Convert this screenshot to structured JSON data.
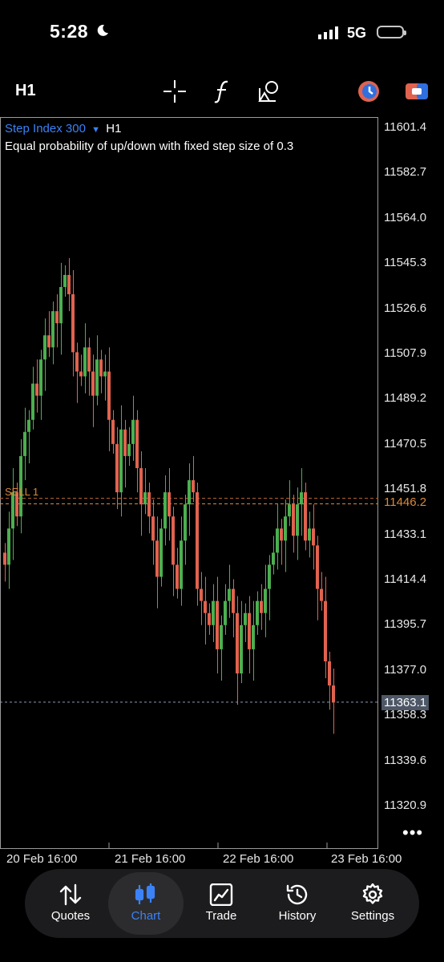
{
  "status_bar": {
    "time": "5:28",
    "network": "5G"
  },
  "toolbar": {
    "timeframe": "H1"
  },
  "chart": {
    "symbol": "Step Index 300",
    "timeframe": "H1",
    "description": "Equal probability of up/down with fixed step size of 0.3",
    "sell_label": "SELL 1",
    "sell_price": "11446.2",
    "current_price": "11363.1",
    "price_axis": [
      "11601.4",
      "11582.7",
      "11564.0",
      "11545.3",
      "11526.6",
      "11507.9",
      "11489.2",
      "11470.5",
      "11451.8",
      "11433.1",
      "11414.4",
      "11395.7",
      "11377.0",
      "11358.3",
      "11339.6",
      "11320.9"
    ],
    "date_axis": [
      "20 Feb 16:00",
      "21 Feb 16:00",
      "22 Feb 16:00",
      "23 Feb 16:00"
    ],
    "more_label": "•••"
  },
  "colors": {
    "up": "#4caf50",
    "down": "#e0634f",
    "accent": "#3b82f6",
    "sell": "#d98a3a",
    "grid": "#9a9a9a"
  },
  "tabs": [
    {
      "label": "Quotes",
      "icon": "arrows-up-down-icon"
    },
    {
      "label": "Chart",
      "icon": "candles-icon",
      "active": true
    },
    {
      "label": "Trade",
      "icon": "trade-chart-icon"
    },
    {
      "label": "History",
      "icon": "clock-history-icon"
    },
    {
      "label": "Settings",
      "icon": "gear-icon"
    }
  ],
  "chart_data": {
    "type": "candlestick",
    "ylim": [
      11310,
      11605
    ],
    "sell_price": 11446.2,
    "current_price": 11363.1,
    "closes": [
      11420,
      11435,
      11450,
      11440,
      11465,
      11475,
      11480,
      11495,
      11490,
      11505,
      11515,
      11510,
      11525,
      11520,
      11535,
      11540,
      11532,
      11508,
      11500,
      11498,
      11510,
      11500,
      11490,
      11505,
      11498,
      11500,
      11480,
      11470,
      11450,
      11476,
      11465,
      11470,
      11480,
      11460,
      11445,
      11450,
      11440,
      11430,
      11415,
      11435,
      11450,
      11440,
      11420,
      11410,
      11430,
      11445,
      11455,
      11450,
      11410,
      11405,
      11400,
      11395,
      11405,
      11385,
      11395,
      11405,
      11410,
      11400,
      11375,
      11395,
      11400,
      11385,
      11395,
      11405,
      11400,
      11410,
      11420,
      11425,
      11435,
      11430,
      11440,
      11445,
      11432,
      11445,
      11450,
      11430,
      11435,
      11428,
      11410,
      11405,
      11380,
      11370,
      11363
    ],
    "start_open": 11425
  }
}
